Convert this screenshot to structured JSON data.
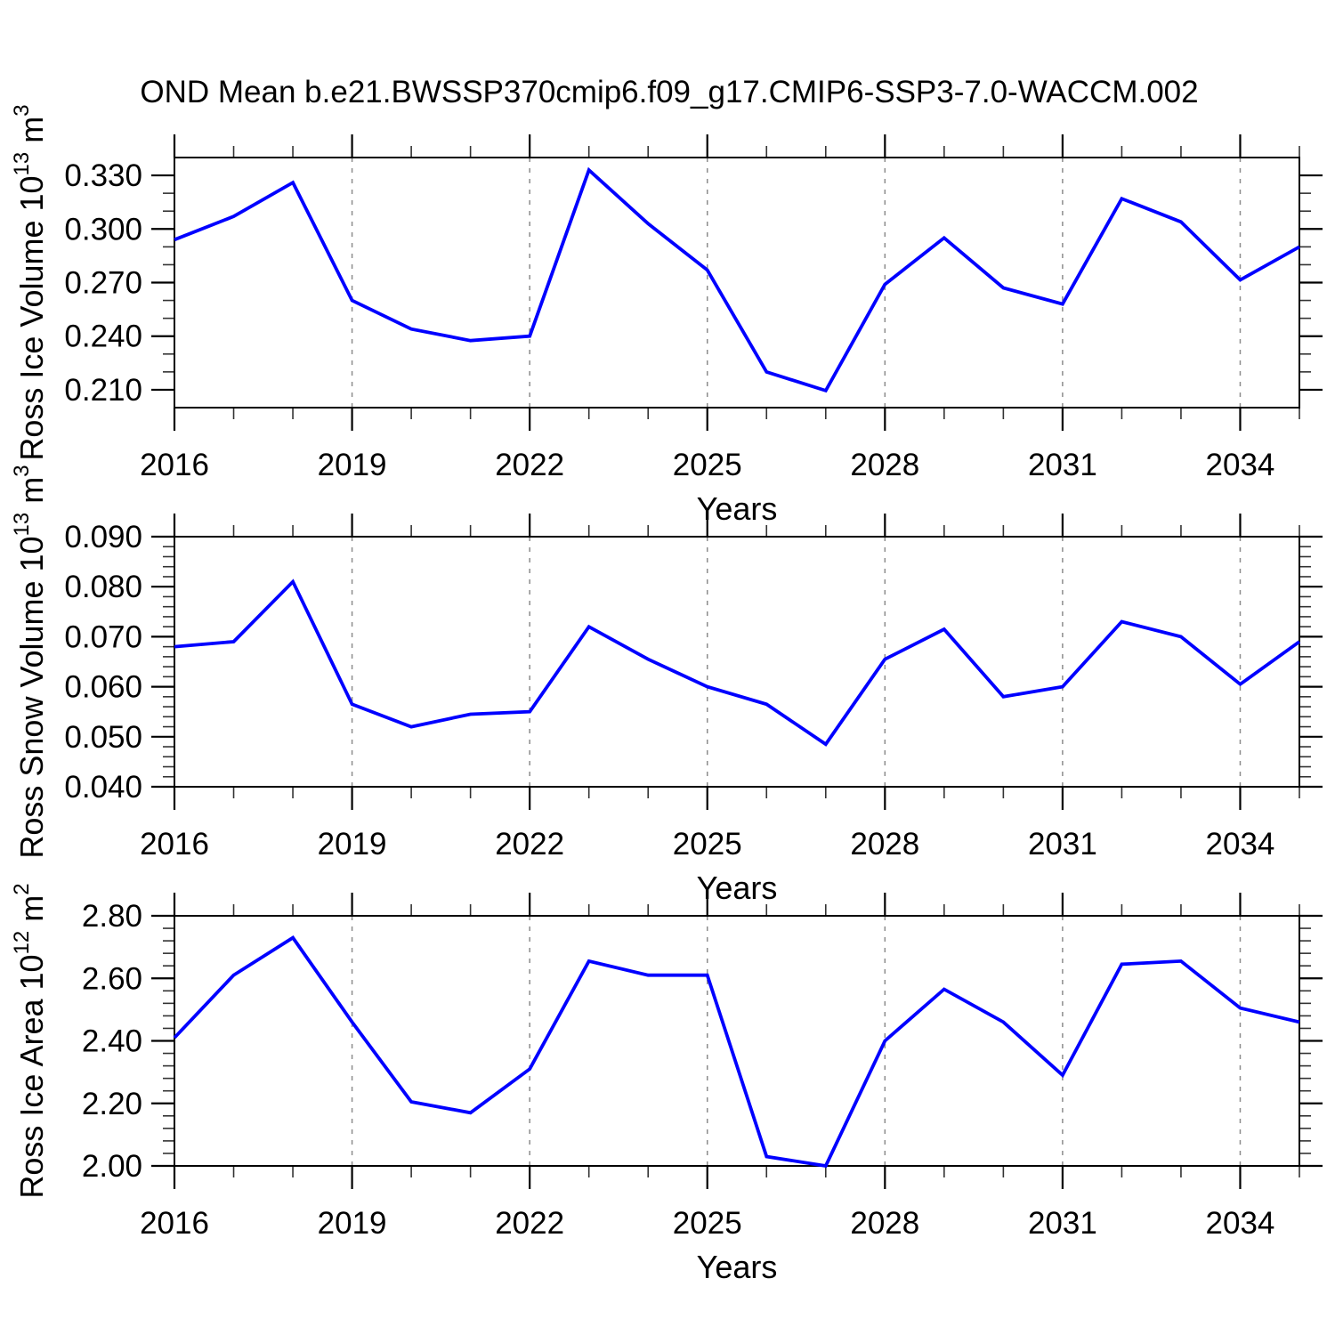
{
  "title": "OND Mean b.e21.BWSSP370cmip6.f09_g17.CMIP6-SSP3-7.0-WACCM.002",
  "line_color": "#0000ff",
  "grid_color": "#8c8c8c",
  "frame_color": "#000000",
  "xlabel": "Years",
  "x_major_ticks": [
    2016,
    2019,
    2022,
    2025,
    2028,
    2031,
    2034
  ],
  "x_grid_years": [
    2019,
    2022,
    2025,
    2028,
    2031,
    2034
  ],
  "xlim": [
    2016,
    2035
  ],
  "x_minor_step": 1,
  "chart_data": [
    {
      "type": "line",
      "id": "ross-ice-volume",
      "ylabel_text": "Ross Ice Volume 10^13 m^3",
      "ylabel_parts": [
        {
          "t": "Ross Ice Volume 10",
          "sup": false
        },
        {
          "t": "13",
          "sup": true
        },
        {
          "t": " m",
          "sup": false
        },
        {
          "t": "3",
          "sup": true
        }
      ],
      "xlabel": "Years",
      "ylim": [
        0.2,
        0.34
      ],
      "y_major_ticks": [
        0.21,
        0.24,
        0.27,
        0.3,
        0.33
      ],
      "y_tick_labels": [
        "0.210",
        "0.240",
        "0.270",
        "0.300",
        "0.330"
      ],
      "y_minor_step": 0.01,
      "grid": "vertical-dashed",
      "x": [
        2016,
        2017,
        2018,
        2019,
        2020,
        2021,
        2022,
        2023,
        2024,
        2025,
        2026,
        2027,
        2028,
        2029,
        2030,
        2031,
        2032,
        2033,
        2034,
        2035
      ],
      "values": [
        0.294,
        0.307,
        0.326,
        0.26,
        0.244,
        0.2375,
        0.24,
        0.333,
        0.303,
        0.277,
        0.22,
        0.2095,
        0.269,
        0.295,
        0.267,
        0.258,
        0.317,
        0.304,
        0.2715,
        0.29
      ]
    },
    {
      "type": "line",
      "id": "ross-snow-volume",
      "ylabel_text": "Ross Snow Volume 10^13 m^3",
      "ylabel_parts": [
        {
          "t": "Ross Snow Volume 10",
          "sup": false
        },
        {
          "t": "13",
          "sup": true
        },
        {
          "t": " m",
          "sup": false
        },
        {
          "t": "3",
          "sup": true
        }
      ],
      "xlabel": "Years",
      "ylim": [
        0.04,
        0.09
      ],
      "y_major_ticks": [
        0.04,
        0.05,
        0.06,
        0.07,
        0.08,
        0.09
      ],
      "y_tick_labels": [
        "0.040",
        "0.050",
        "0.060",
        "0.070",
        "0.080",
        "0.090"
      ],
      "y_minor_step": 0.002,
      "grid": "vertical-dashed",
      "x": [
        2016,
        2017,
        2018,
        2019,
        2020,
        2021,
        2022,
        2023,
        2024,
        2025,
        2026,
        2027,
        2028,
        2029,
        2030,
        2031,
        2032,
        2033,
        2034,
        2035
      ],
      "values": [
        0.068,
        0.069,
        0.081,
        0.0565,
        0.052,
        0.0545,
        0.055,
        0.072,
        0.0655,
        0.06,
        0.0565,
        0.0485,
        0.0655,
        0.0715,
        0.058,
        0.06,
        0.073,
        0.07,
        0.0605,
        0.069
      ]
    },
    {
      "type": "line",
      "id": "ross-ice-area",
      "ylabel_text": "Ross Ice Area 10^12 m^2",
      "ylabel_parts": [
        {
          "t": "Ross Ice Area 10",
          "sup": false
        },
        {
          "t": "12",
          "sup": true
        },
        {
          "t": " m",
          "sup": false
        },
        {
          "t": "2",
          "sup": true
        }
      ],
      "xlabel": "Years",
      "ylim": [
        2.0,
        2.8
      ],
      "y_major_ticks": [
        2.0,
        2.2,
        2.4,
        2.6,
        2.8
      ],
      "y_tick_labels": [
        "2.00",
        "2.20",
        "2.40",
        "2.60",
        "2.80"
      ],
      "y_minor_step": 0.04,
      "grid": "vertical-dashed",
      "x": [
        2016,
        2017,
        2018,
        2019,
        2020,
        2021,
        2022,
        2023,
        2024,
        2025,
        2026,
        2027,
        2028,
        2029,
        2030,
        2031,
        2032,
        2033,
        2034,
        2035
      ],
      "values": [
        2.41,
        2.61,
        2.73,
        2.46,
        2.205,
        2.17,
        2.31,
        2.655,
        2.61,
        2.61,
        2.03,
        2.0,
        2.4,
        2.565,
        2.46,
        2.29,
        2.645,
        2.655,
        2.505,
        2.46
      ]
    }
  ]
}
